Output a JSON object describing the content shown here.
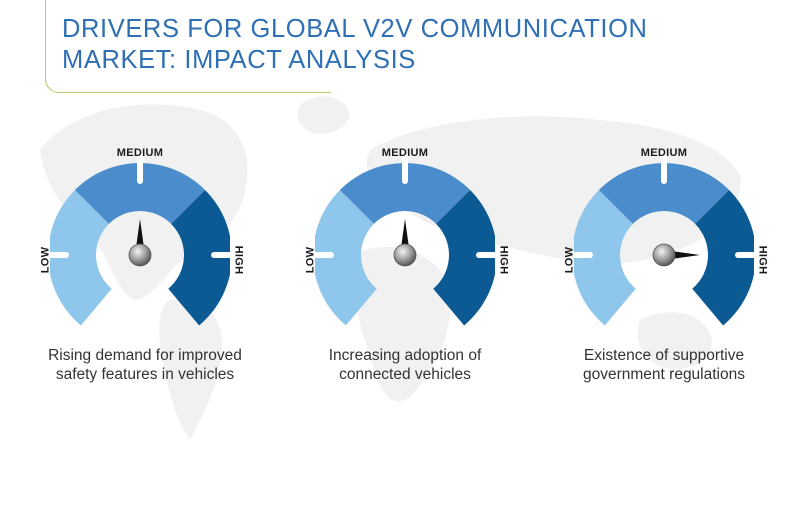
{
  "title": {
    "line1": "DRIVERS FOR GLOBAL V2V COMMUNICATION",
    "line2": "MARKET: IMPACT ANALYSIS"
  },
  "colors": {
    "title": "#2f6fb3",
    "accent_line": "#b8c86a",
    "low": "#8ec6ec",
    "medium": "#4a8ccc",
    "high": "#0b5a94",
    "map": "#f1f1f1"
  },
  "scale_labels": {
    "low": "LOW",
    "medium": "MEDIUM",
    "high": "HIGH"
  },
  "gauges": [
    {
      "caption_line1": "Rising demand for improved",
      "caption_line2": "safety features in vehicles",
      "level": "medium"
    },
    {
      "caption_line1": "Increasing adoption of",
      "caption_line2": "connected vehicles",
      "level": "medium"
    },
    {
      "caption_line1": "Existence of supportive",
      "caption_line2": "government regulations",
      "level": "high"
    }
  ]
}
